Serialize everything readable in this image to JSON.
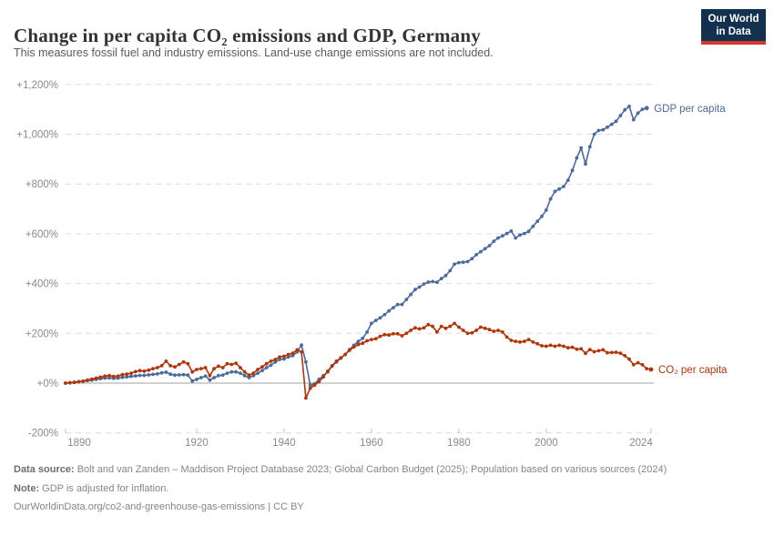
{
  "header": {
    "title": "Change in per capita CO₂ emissions and GDP, Germany",
    "subtitle": "This measures fossil fuel and industry emissions. Land-use change emissions are not included.",
    "logo_line1": "Our World",
    "logo_line2": "in Data"
  },
  "colors": {
    "gdp_line": "#4C6A9C",
    "co2_line": "#B13507",
    "logo_bg": "#12314f",
    "logo_underline": "#d4382a",
    "gridline": "#dcdcdc",
    "zero_line": "#a3a3a3",
    "axis_text": "#8a8a8a"
  },
  "chart_data": {
    "type": "line",
    "title": "Change in per capita CO₂ emissions and GDP, Germany",
    "xlabel": "",
    "ylabel": "",
    "x_range": [
      1890,
      2024
    ],
    "ylim": [
      -200,
      1200
    ],
    "grid": true,
    "legend_position": "line-end-labels",
    "x_ticks": [
      1890,
      1920,
      1940,
      1960,
      1980,
      2000,
      2024
    ],
    "y_ticks": [
      {
        "label": "+1,200%",
        "value": 1200
      },
      {
        "label": "+1,000%",
        "value": 1000
      },
      {
        "label": "+800%",
        "value": 800
      },
      {
        "label": "+600%",
        "value": 600
      },
      {
        "label": "+400%",
        "value": 400
      },
      {
        "label": "+200%",
        "value": 200
      },
      {
        "label": "+0%",
        "value": 0
      },
      {
        "label": "-200%",
        "value": -200
      }
    ],
    "unit": "% change",
    "series": [
      {
        "name": "GDP per capita",
        "id": "gdp-per-capita",
        "color": "#4C6A9C",
        "start_year": 1890,
        "end_year": 2023,
        "values": [
          0,
          1,
          3,
          5,
          7,
          10,
          12,
          15,
          18,
          20,
          21,
          19,
          20,
          23,
          25,
          27,
          29,
          31,
          31,
          33,
          35,
          37,
          41,
          44,
          36,
          32,
          33,
          34,
          32,
          8,
          15,
          22,
          28,
          12,
          22,
          30,
          32,
          40,
          45,
          45,
          40,
          30,
          22,
          30,
          40,
          50,
          62,
          72,
          85,
          95,
          97,
          105,
          110,
          125,
          153,
          85,
          -8,
          -3,
          15,
          30,
          45,
          68,
          85,
          100,
          115,
          135,
          152,
          168,
          180,
          205,
          240,
          252,
          262,
          275,
          290,
          303,
          316,
          316,
          336,
          356,
          376,
          386,
          398,
          406,
          408,
          405,
          420,
          432,
          452,
          478,
          484,
          486,
          488,
          500,
          516,
          528,
          540,
          552,
          570,
          583,
          592,
          601,
          611,
          583,
          595,
          601,
          610,
          630,
          650,
          670,
          695,
          740,
          770,
          780,
          790,
          815,
          855,
          905,
          945,
          880,
          950,
          1000,
          1015,
          1018,
          1028,
          1040,
          1052,
          1075,
          1098,
          1112,
          1058,
          1085,
          1100,
          1105
        ]
      },
      {
        "name": "CO₂ per capita",
        "id": "co2-per-capita",
        "color": "#B13507",
        "start_year": 1890,
        "end_year": 2024,
        "values": [
          0,
          2,
          3,
          6,
          8,
          12,
          16,
          20,
          24,
          28,
          30,
          27,
          28,
          34,
          36,
          40,
          46,
          50,
          48,
          52,
          58,
          62,
          70,
          88,
          70,
          65,
          75,
          85,
          78,
          45,
          55,
          58,
          62,
          30,
          58,
          68,
          62,
          78,
          75,
          80,
          62,
          45,
          32,
          40,
          55,
          65,
          78,
          88,
          95,
          105,
          108,
          115,
          120,
          134,
          125,
          -60,
          -21,
          -8,
          5,
          25,
          48,
          70,
          88,
          102,
          115,
          132,
          145,
          155,
          160,
          170,
          175,
          178,
          188,
          195,
          193,
          198,
          198,
          190,
          200,
          212,
          222,
          218,
          222,
          235,
          228,
          205,
          228,
          220,
          228,
          240,
          225,
          212,
          200,
          202,
          212,
          225,
          220,
          215,
          208,
          212,
          205,
          185,
          172,
          168,
          165,
          168,
          175,
          165,
          158,
          150,
          148,
          152,
          148,
          152,
          148,
          142,
          144,
          136,
          138,
          120,
          135,
          126,
          130,
          134,
          122,
          123,
          124,
          120,
          110,
          96,
          74,
          82,
          74,
          58,
          55
        ]
      }
    ]
  },
  "footer": {
    "data_source_label": "Data source:",
    "data_source_text": " Bolt and van Zanden – Maddison Project Database 2023; Global Carbon Budget (2025); Population based on various sources (2024)",
    "note_label": "Note:",
    "note_text": " GDP is adjusted for inflation.",
    "link": "OurWorldinData.org/co2-and-greenhouse-gas-emissions",
    "separator": " | ",
    "license": "CC BY"
  }
}
